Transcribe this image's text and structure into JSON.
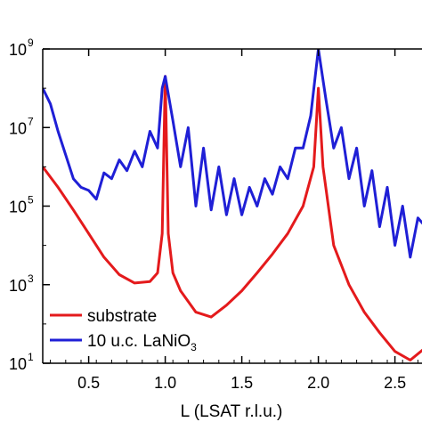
{
  "chart_data": {
    "type": "line",
    "title": "",
    "xlabel": "L (LSAT r.l.u.)",
    "ylabel": "",
    "xlim": [
      0.2,
      2.7
    ],
    "ylim": [
      10,
      1000000000
    ],
    "y_scale": "log",
    "grid": false,
    "legend_position": "bottom-left",
    "x_ticks": [
      {
        "value": 0.5,
        "label": "0.5"
      },
      {
        "value": 1.0,
        "label": "1.0"
      },
      {
        "value": 1.5,
        "label": "1.5"
      },
      {
        "value": 2.0,
        "label": "2.0"
      },
      {
        "value": 2.5,
        "label": "2.5"
      }
    ],
    "y_ticks": [
      {
        "value": 10,
        "base": "10",
        "exp": "1"
      },
      {
        "value": 1000,
        "base": "10",
        "exp": "3"
      },
      {
        "value": 100000,
        "base": "10",
        "exp": "5"
      },
      {
        "value": 10000000,
        "base": "10",
        "exp": "7"
      },
      {
        "value": 1000000000,
        "base": "10",
        "exp": "9"
      }
    ],
    "series": [
      {
        "name": "substrate",
        "legend_main": "substrate",
        "legend_sub": "",
        "legend_tail": "",
        "color": "#e41a1c",
        "points": [
          [
            0.2,
            1000000
          ],
          [
            0.3,
            300000
          ],
          [
            0.4,
            80000
          ],
          [
            0.5,
            20000
          ],
          [
            0.6,
            5000
          ],
          [
            0.7,
            1800
          ],
          [
            0.8,
            1100
          ],
          [
            0.9,
            1200
          ],
          [
            0.95,
            2000
          ],
          [
            0.98,
            20000
          ],
          [
            1.0,
            200000000
          ],
          [
            1.02,
            20000
          ],
          [
            1.05,
            2000
          ],
          [
            1.1,
            700
          ],
          [
            1.2,
            200
          ],
          [
            1.3,
            150
          ],
          [
            1.4,
            300
          ],
          [
            1.5,
            700
          ],
          [
            1.6,
            2000
          ],
          [
            1.7,
            6000
          ],
          [
            1.8,
            20000
          ],
          [
            1.9,
            100000
          ],
          [
            1.97,
            1000000
          ],
          [
            2.0,
            100000000
          ],
          [
            2.03,
            1000000
          ],
          [
            2.1,
            10000
          ],
          [
            2.2,
            1000
          ],
          [
            2.3,
            200
          ],
          [
            2.4,
            60
          ],
          [
            2.5,
            20
          ],
          [
            2.6,
            12
          ],
          [
            2.7,
            25
          ]
        ]
      },
      {
        "name": "10 u.c. LaNiO3",
        "legend_main": "10 u.c. LaNiO",
        "legend_sub": "3",
        "legend_tail": "",
        "color": "#1f1fd6",
        "points": [
          [
            0.2,
            100000000
          ],
          [
            0.25,
            40000000
          ],
          [
            0.3,
            8000000
          ],
          [
            0.35,
            2000000
          ],
          [
            0.4,
            500000
          ],
          [
            0.45,
            300000
          ],
          [
            0.5,
            250000
          ],
          [
            0.55,
            150000
          ],
          [
            0.6,
            700000
          ],
          [
            0.65,
            500000
          ],
          [
            0.7,
            1500000
          ],
          [
            0.75,
            800000
          ],
          [
            0.8,
            2500000
          ],
          [
            0.85,
            1000000
          ],
          [
            0.9,
            8000000
          ],
          [
            0.95,
            3000000
          ],
          [
            0.98,
            100000000
          ],
          [
            1.0,
            200000000
          ],
          [
            1.05,
            15000000
          ],
          [
            1.1,
            1000000
          ],
          [
            1.15,
            10000000
          ],
          [
            1.2,
            100000
          ],
          [
            1.25,
            3000000
          ],
          [
            1.3,
            80000
          ],
          [
            1.35,
            1000000
          ],
          [
            1.4,
            60000
          ],
          [
            1.45,
            500000
          ],
          [
            1.5,
            60000
          ],
          [
            1.55,
            300000
          ],
          [
            1.6,
            100000
          ],
          [
            1.65,
            500000
          ],
          [
            1.7,
            200000
          ],
          [
            1.75,
            1000000
          ],
          [
            1.8,
            500000
          ],
          [
            1.85,
            3000000
          ],
          [
            1.9,
            3000000
          ],
          [
            1.95,
            20000000
          ],
          [
            2.0,
            1000000000
          ],
          [
            2.05,
            50000000
          ],
          [
            2.1,
            3000000
          ],
          [
            2.15,
            10000000
          ],
          [
            2.2,
            500000
          ],
          [
            2.25,
            3000000
          ],
          [
            2.3,
            100000
          ],
          [
            2.35,
            800000
          ],
          [
            2.4,
            30000
          ],
          [
            2.45,
            300000
          ],
          [
            2.5,
            10000
          ],
          [
            2.55,
            100000
          ],
          [
            2.6,
            5000
          ],
          [
            2.65,
            50000
          ],
          [
            2.7,
            30000
          ]
        ]
      }
    ]
  }
}
